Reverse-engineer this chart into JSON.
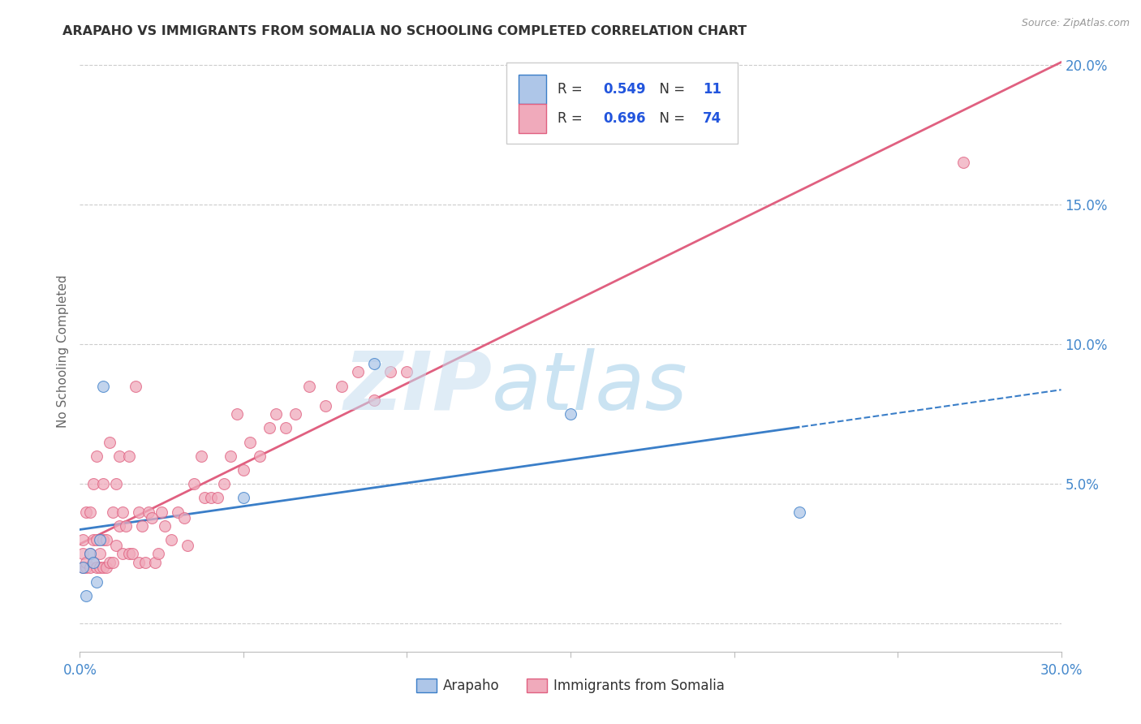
{
  "title": "ARAPAHO VS IMMIGRANTS FROM SOMALIA NO SCHOOLING COMPLETED CORRELATION CHART",
  "source": "Source: ZipAtlas.com",
  "ylabel": "No Schooling Completed",
  "xlim": [
    0.0,
    0.3
  ],
  "ylim": [
    -0.01,
    0.205
  ],
  "xticks": [
    0.0,
    0.05,
    0.1,
    0.15,
    0.2,
    0.25,
    0.3
  ],
  "yticks": [
    0.0,
    0.05,
    0.1,
    0.15,
    0.2
  ],
  "background_color": "#ffffff",
  "grid_color": "#cccccc",
  "arapaho_R": 0.549,
  "arapaho_N": 11,
  "somalia_R": 0.696,
  "somalia_N": 74,
  "arapaho_color": "#aec6e8",
  "arapaho_line_color": "#3a7ec8",
  "somalia_color": "#f0aabb",
  "somalia_line_color": "#e06080",
  "arapaho_x": [
    0.001,
    0.002,
    0.003,
    0.004,
    0.005,
    0.006,
    0.007,
    0.05,
    0.09,
    0.15,
    0.22
  ],
  "arapaho_y": [
    0.02,
    0.01,
    0.025,
    0.022,
    0.015,
    0.03,
    0.085,
    0.045,
    0.093,
    0.075,
    0.04
  ],
  "somalia_x": [
    0.001,
    0.001,
    0.001,
    0.002,
    0.002,
    0.002,
    0.003,
    0.003,
    0.003,
    0.004,
    0.004,
    0.004,
    0.005,
    0.005,
    0.005,
    0.006,
    0.006,
    0.007,
    0.007,
    0.007,
    0.008,
    0.008,
    0.009,
    0.009,
    0.01,
    0.01,
    0.011,
    0.011,
    0.012,
    0.012,
    0.013,
    0.013,
    0.014,
    0.015,
    0.015,
    0.016,
    0.017,
    0.018,
    0.018,
    0.019,
    0.02,
    0.021,
    0.022,
    0.023,
    0.024,
    0.025,
    0.026,
    0.028,
    0.03,
    0.032,
    0.033,
    0.035,
    0.037,
    0.038,
    0.04,
    0.042,
    0.044,
    0.046,
    0.048,
    0.05,
    0.052,
    0.055,
    0.058,
    0.06,
    0.063,
    0.066,
    0.07,
    0.075,
    0.08,
    0.085,
    0.09,
    0.095,
    0.1,
    0.27
  ],
  "somalia_y": [
    0.02,
    0.025,
    0.03,
    0.02,
    0.022,
    0.04,
    0.02,
    0.025,
    0.04,
    0.022,
    0.03,
    0.05,
    0.02,
    0.03,
    0.06,
    0.02,
    0.025,
    0.02,
    0.03,
    0.05,
    0.02,
    0.03,
    0.022,
    0.065,
    0.022,
    0.04,
    0.028,
    0.05,
    0.035,
    0.06,
    0.025,
    0.04,
    0.035,
    0.025,
    0.06,
    0.025,
    0.085,
    0.022,
    0.04,
    0.035,
    0.022,
    0.04,
    0.038,
    0.022,
    0.025,
    0.04,
    0.035,
    0.03,
    0.04,
    0.038,
    0.028,
    0.05,
    0.06,
    0.045,
    0.045,
    0.045,
    0.05,
    0.06,
    0.075,
    0.055,
    0.065,
    0.06,
    0.07,
    0.075,
    0.07,
    0.075,
    0.085,
    0.078,
    0.085,
    0.09,
    0.08,
    0.09,
    0.09,
    0.165
  ]
}
